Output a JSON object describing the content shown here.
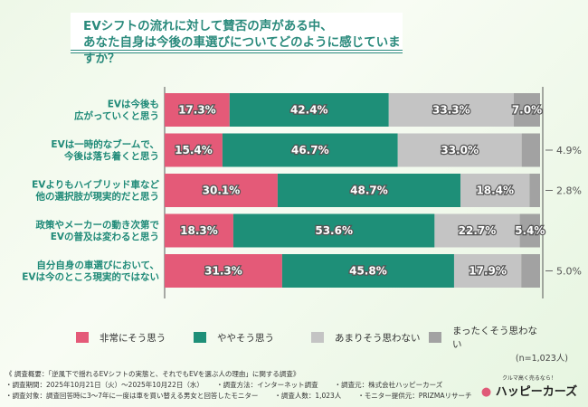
{
  "title_lines": [
    "EVシフトの流れに対して賛否の声がある中、",
    "あなた自身は今後の車選びについてどのように感じていますか？"
  ],
  "chart_data": {
    "type": "bar",
    "stacked": true,
    "orientation": "horizontal",
    "xlim": [
      0,
      100
    ],
    "unit": "%",
    "categories": [
      [
        "EVは今後も",
        "広がっていくと思う"
      ],
      [
        "EVは一時的なブームで、",
        "今後は落ち着くと思う"
      ],
      [
        "EVよりもハイブリッド車など",
        "他の選択肢が現実的だと思う"
      ],
      [
        "政策やメーカーの動き次第で",
        "EVの普及は変わると思う"
      ],
      [
        "自分自身の車選びにおいて、",
        "EVは今のところ現実的ではない"
      ]
    ],
    "series": [
      {
        "name": "非常にそう思う",
        "color": "#e45a78",
        "values": [
          17.3,
          15.4,
          30.1,
          18.3,
          31.3
        ]
      },
      {
        "name": "ややそう思う",
        "color": "#1e8f78",
        "values": [
          42.4,
          46.7,
          48.7,
          53.6,
          45.8
        ]
      },
      {
        "name": "あまりそう思わない",
        "color": "#c4c4c4",
        "values": [
          33.3,
          33.0,
          18.4,
          22.7,
          17.9
        ]
      },
      {
        "name": "まったくそう思わない",
        "color": "#a2a2a2",
        "values": [
          7.0,
          4.9,
          2.8,
          5.4,
          5.0
        ]
      }
    ],
    "legend": "bottom"
  },
  "n_label": "(n=1,023人)",
  "footer": [
    [
      "《 調査概要：「逆風下で揺れるEVシフトの実態と、それでもEVを選ぶ人の理由」に関する調査》"
    ],
    [
      "・調査期間：2025年10月21日（火）～2025年10月22日（水）",
      "・調査方法：インターネット調査",
      "・調査元：株式会社ハッピーカーズ"
    ],
    [
      "・調査対象：調査回答時に3～7年に一度は車を買い替える男女と回答したモニター",
      "・調査人数：1,023人",
      "・モニター提供元：PRIZMAリサーチ"
    ]
  ],
  "logo": {
    "tagline": "クルマ高く売るなら！",
    "name": "ハッピーカーズ"
  }
}
